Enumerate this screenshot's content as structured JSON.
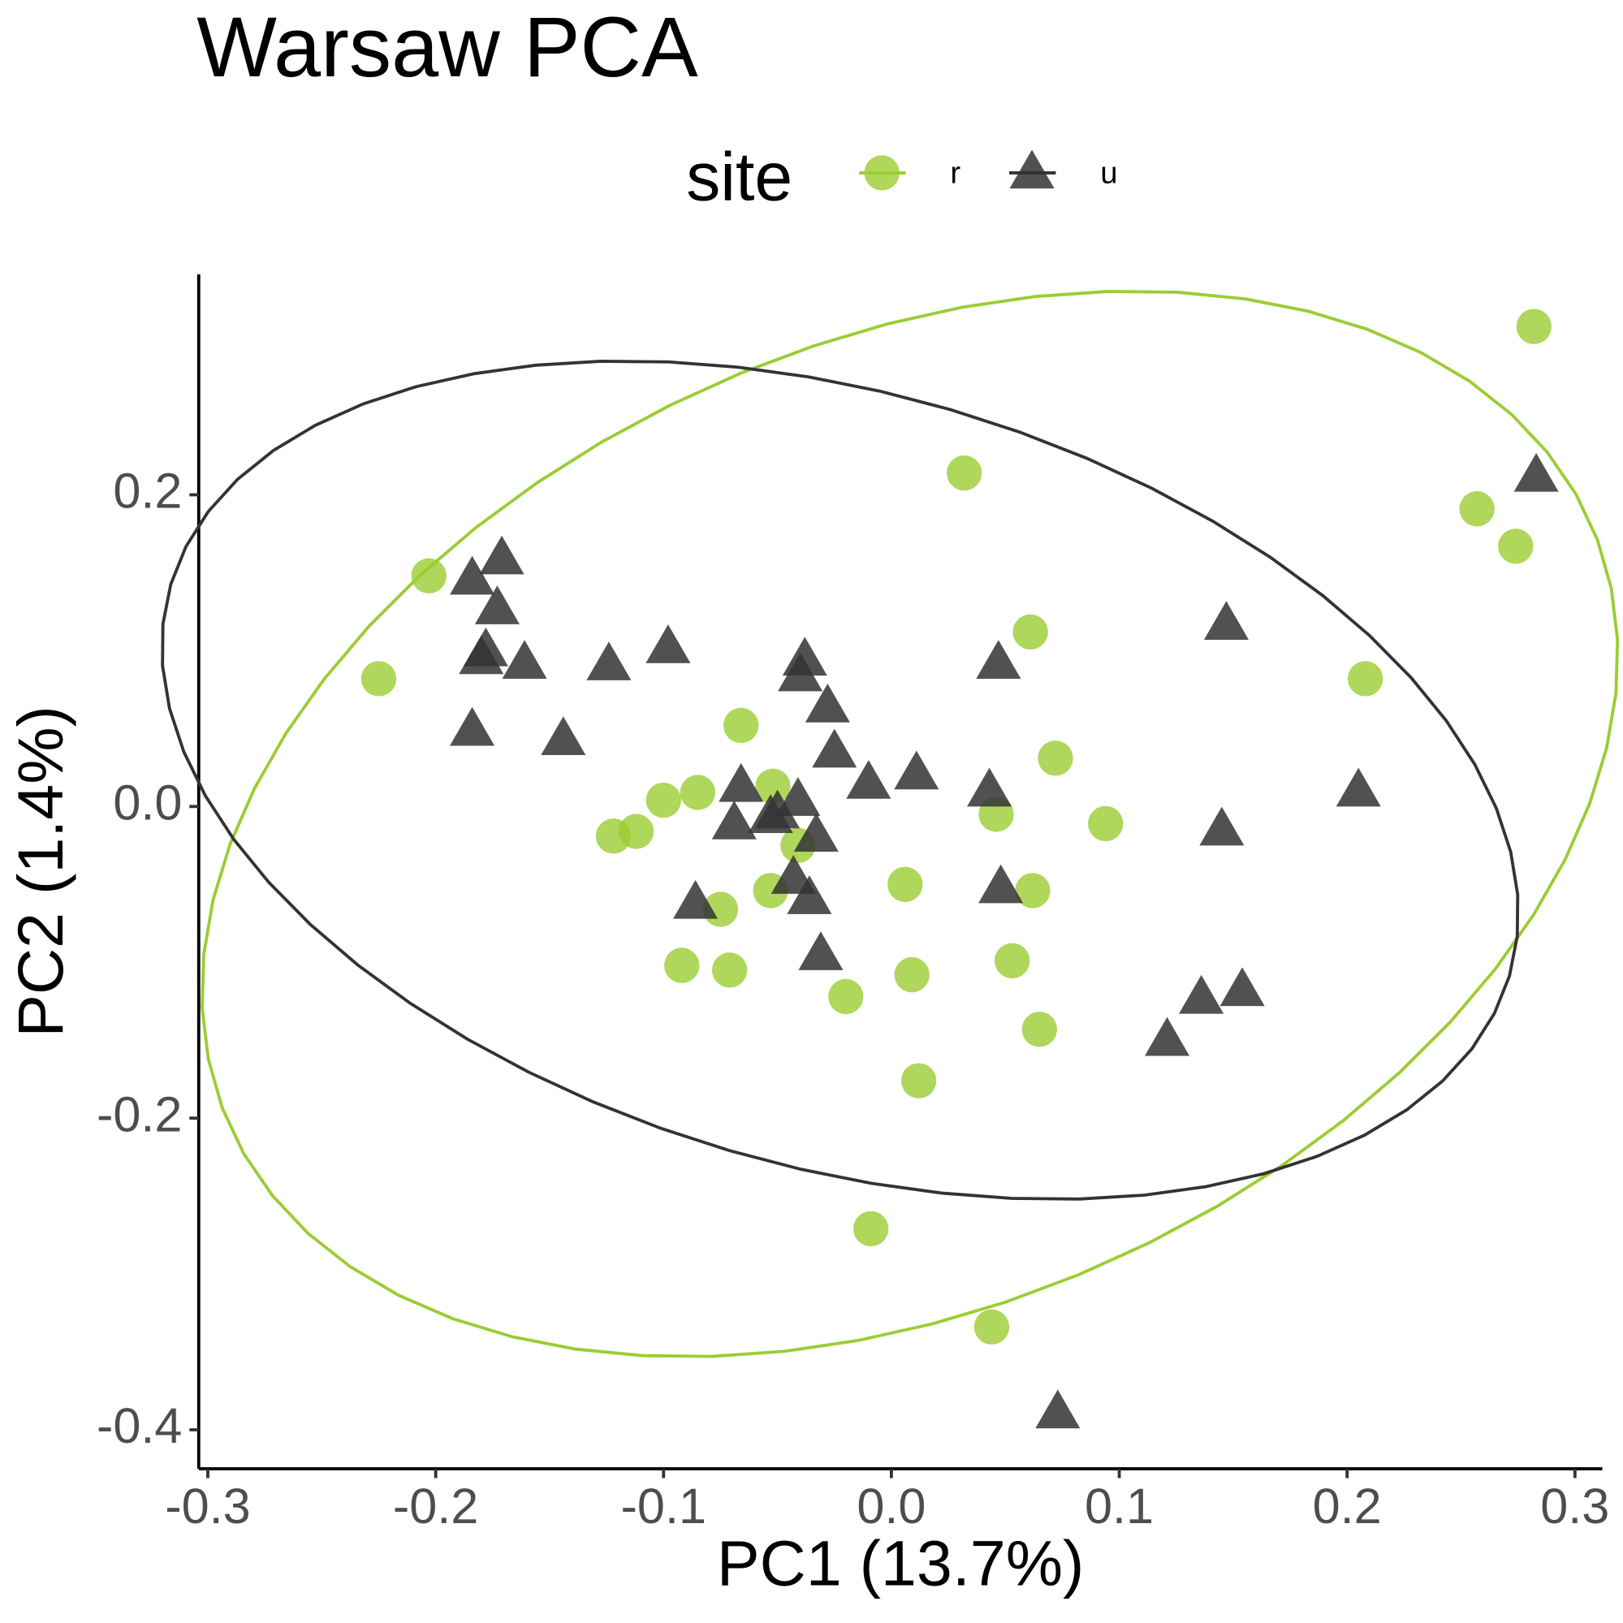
{
  "chart_data": {
    "type": "scatter",
    "title": "Warsaw PCA",
    "x_label": "PC1 (13.7%)",
    "y_label": "PC2 (1.4%)",
    "legend_title": "site",
    "legend_position": "top",
    "xlim": [
      -0.304,
      0.312
    ],
    "ylim": [
      -0.425,
      0.3415
    ],
    "xticks": [
      -0.3,
      -0.2,
      -0.1,
      {
        "value": 0,
        "label": "0.0"
      },
      0.1,
      0.2,
      0.3
    ],
    "yticks": [
      -0.4,
      -0.2,
      {
        "value": 0,
        "label": "0.0"
      },
      0.2
    ],
    "ellipse": true,
    "series": [
      {
        "name": "r",
        "color": "#9acd32",
        "marker": "circle",
        "x": [
          0.282,
          0.032,
          0.257,
          0.274,
          -0.203,
          0.061,
          -0.225,
          0.208,
          -0.066,
          0.072,
          -0.1,
          -0.085,
          -0.052,
          0.046,
          0.094,
          -0.122,
          -0.112,
          -0.041,
          0.006,
          -0.053,
          0.062,
          -0.075,
          -0.092,
          -0.071,
          0.009,
          0.053,
          -0.02,
          0.065,
          0.012,
          -0.009,
          0.044
        ],
        "y": [
          0.308,
          0.214,
          0.191,
          0.167,
          0.148,
          0.112,
          0.082,
          0.082,
          0.052,
          0.031,
          0.004,
          0.009,
          0.013,
          -0.005,
          -0.011,
          -0.019,
          -0.016,
          -0.025,
          -0.05,
          -0.054,
          -0.054,
          -0.066,
          -0.102,
          -0.105,
          -0.108,
          -0.099,
          -0.122,
          -0.143,
          -0.176,
          -0.271,
          -0.334
        ]
      },
      {
        "name": "u",
        "color": "#333333",
        "marker": "triangle",
        "x": [
          0.283,
          -0.171,
          -0.184,
          -0.173,
          -0.178,
          -0.18,
          -0.161,
          -0.124,
          -0.098,
          -0.038,
          -0.04,
          0.047,
          0.147,
          -0.028,
          -0.184,
          -0.144,
          -0.025,
          -0.066,
          -0.01,
          0.011,
          0.043,
          -0.041,
          -0.05,
          -0.053,
          -0.069,
          -0.033,
          0.205,
          0.145,
          -0.043,
          -0.086,
          -0.036,
          0.048,
          -0.031,
          0.136,
          0.154,
          0.121,
          0.073
        ],
        "y": [
          0.212,
          0.159,
          0.146,
          0.127,
          0.1,
          0.095,
          0.092,
          0.091,
          0.102,
          0.094,
          0.084,
          0.092,
          0.117,
          0.064,
          0.049,
          0.043,
          0.035,
          0.013,
          0.015,
          0.021,
          0.01,
          0.004,
          -0.004,
          -0.007,
          -0.011,
          -0.019,
          0.01,
          -0.015,
          -0.046,
          -0.062,
          -0.059,
          -0.052,
          -0.095,
          -0.123,
          -0.118,
          -0.15,
          -0.389
        ]
      }
    ]
  }
}
